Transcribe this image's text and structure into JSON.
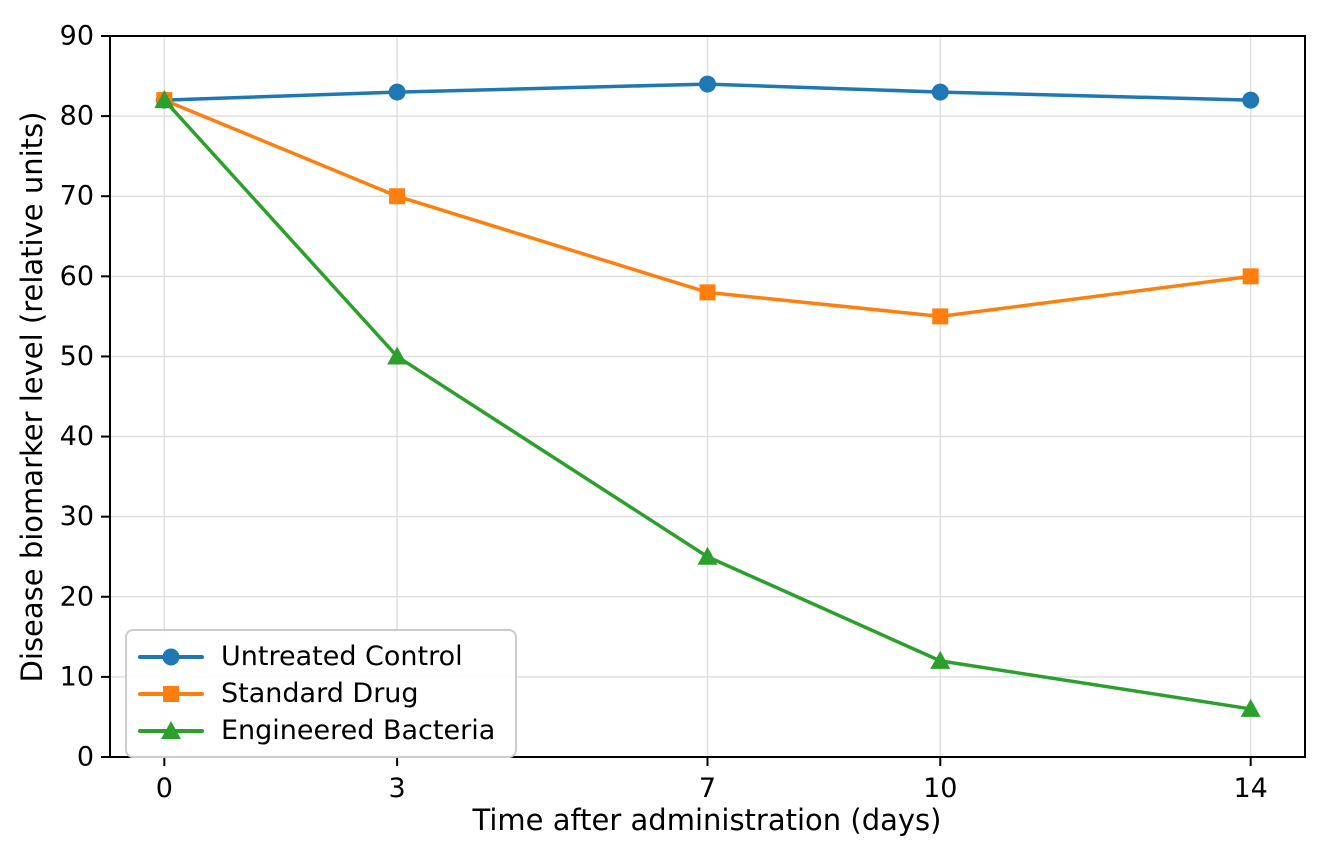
{
  "chart_data": {
    "type": "line",
    "x": [
      0,
      3,
      7,
      10,
      14
    ],
    "series": [
      {
        "name": "Untreated Control",
        "values": [
          82,
          83,
          84,
          83,
          82
        ],
        "color": "#1f77b4",
        "marker": "circle"
      },
      {
        "name": "Standard Drug",
        "values": [
          82,
          70,
          58,
          55,
          60
        ],
        "color": "#ff7f0e",
        "marker": "square"
      },
      {
        "name": "Engineered Bacteria",
        "values": [
          82,
          50,
          25,
          12,
          6
        ],
        "color": "#2ca02c",
        "marker": "triangle"
      }
    ],
    "title": "",
    "xlabel": "Time after administration (days)",
    "ylabel": "Disease biomarker level (relative units)",
    "xticks": [
      0,
      3,
      7,
      10,
      14
    ],
    "yticks": [
      0,
      10,
      20,
      30,
      40,
      50,
      60,
      70,
      80,
      90
    ],
    "xlim": [
      -0.7,
      14.7
    ],
    "ylim": [
      0,
      90
    ],
    "grid": true,
    "legend_position": "lower left"
  }
}
